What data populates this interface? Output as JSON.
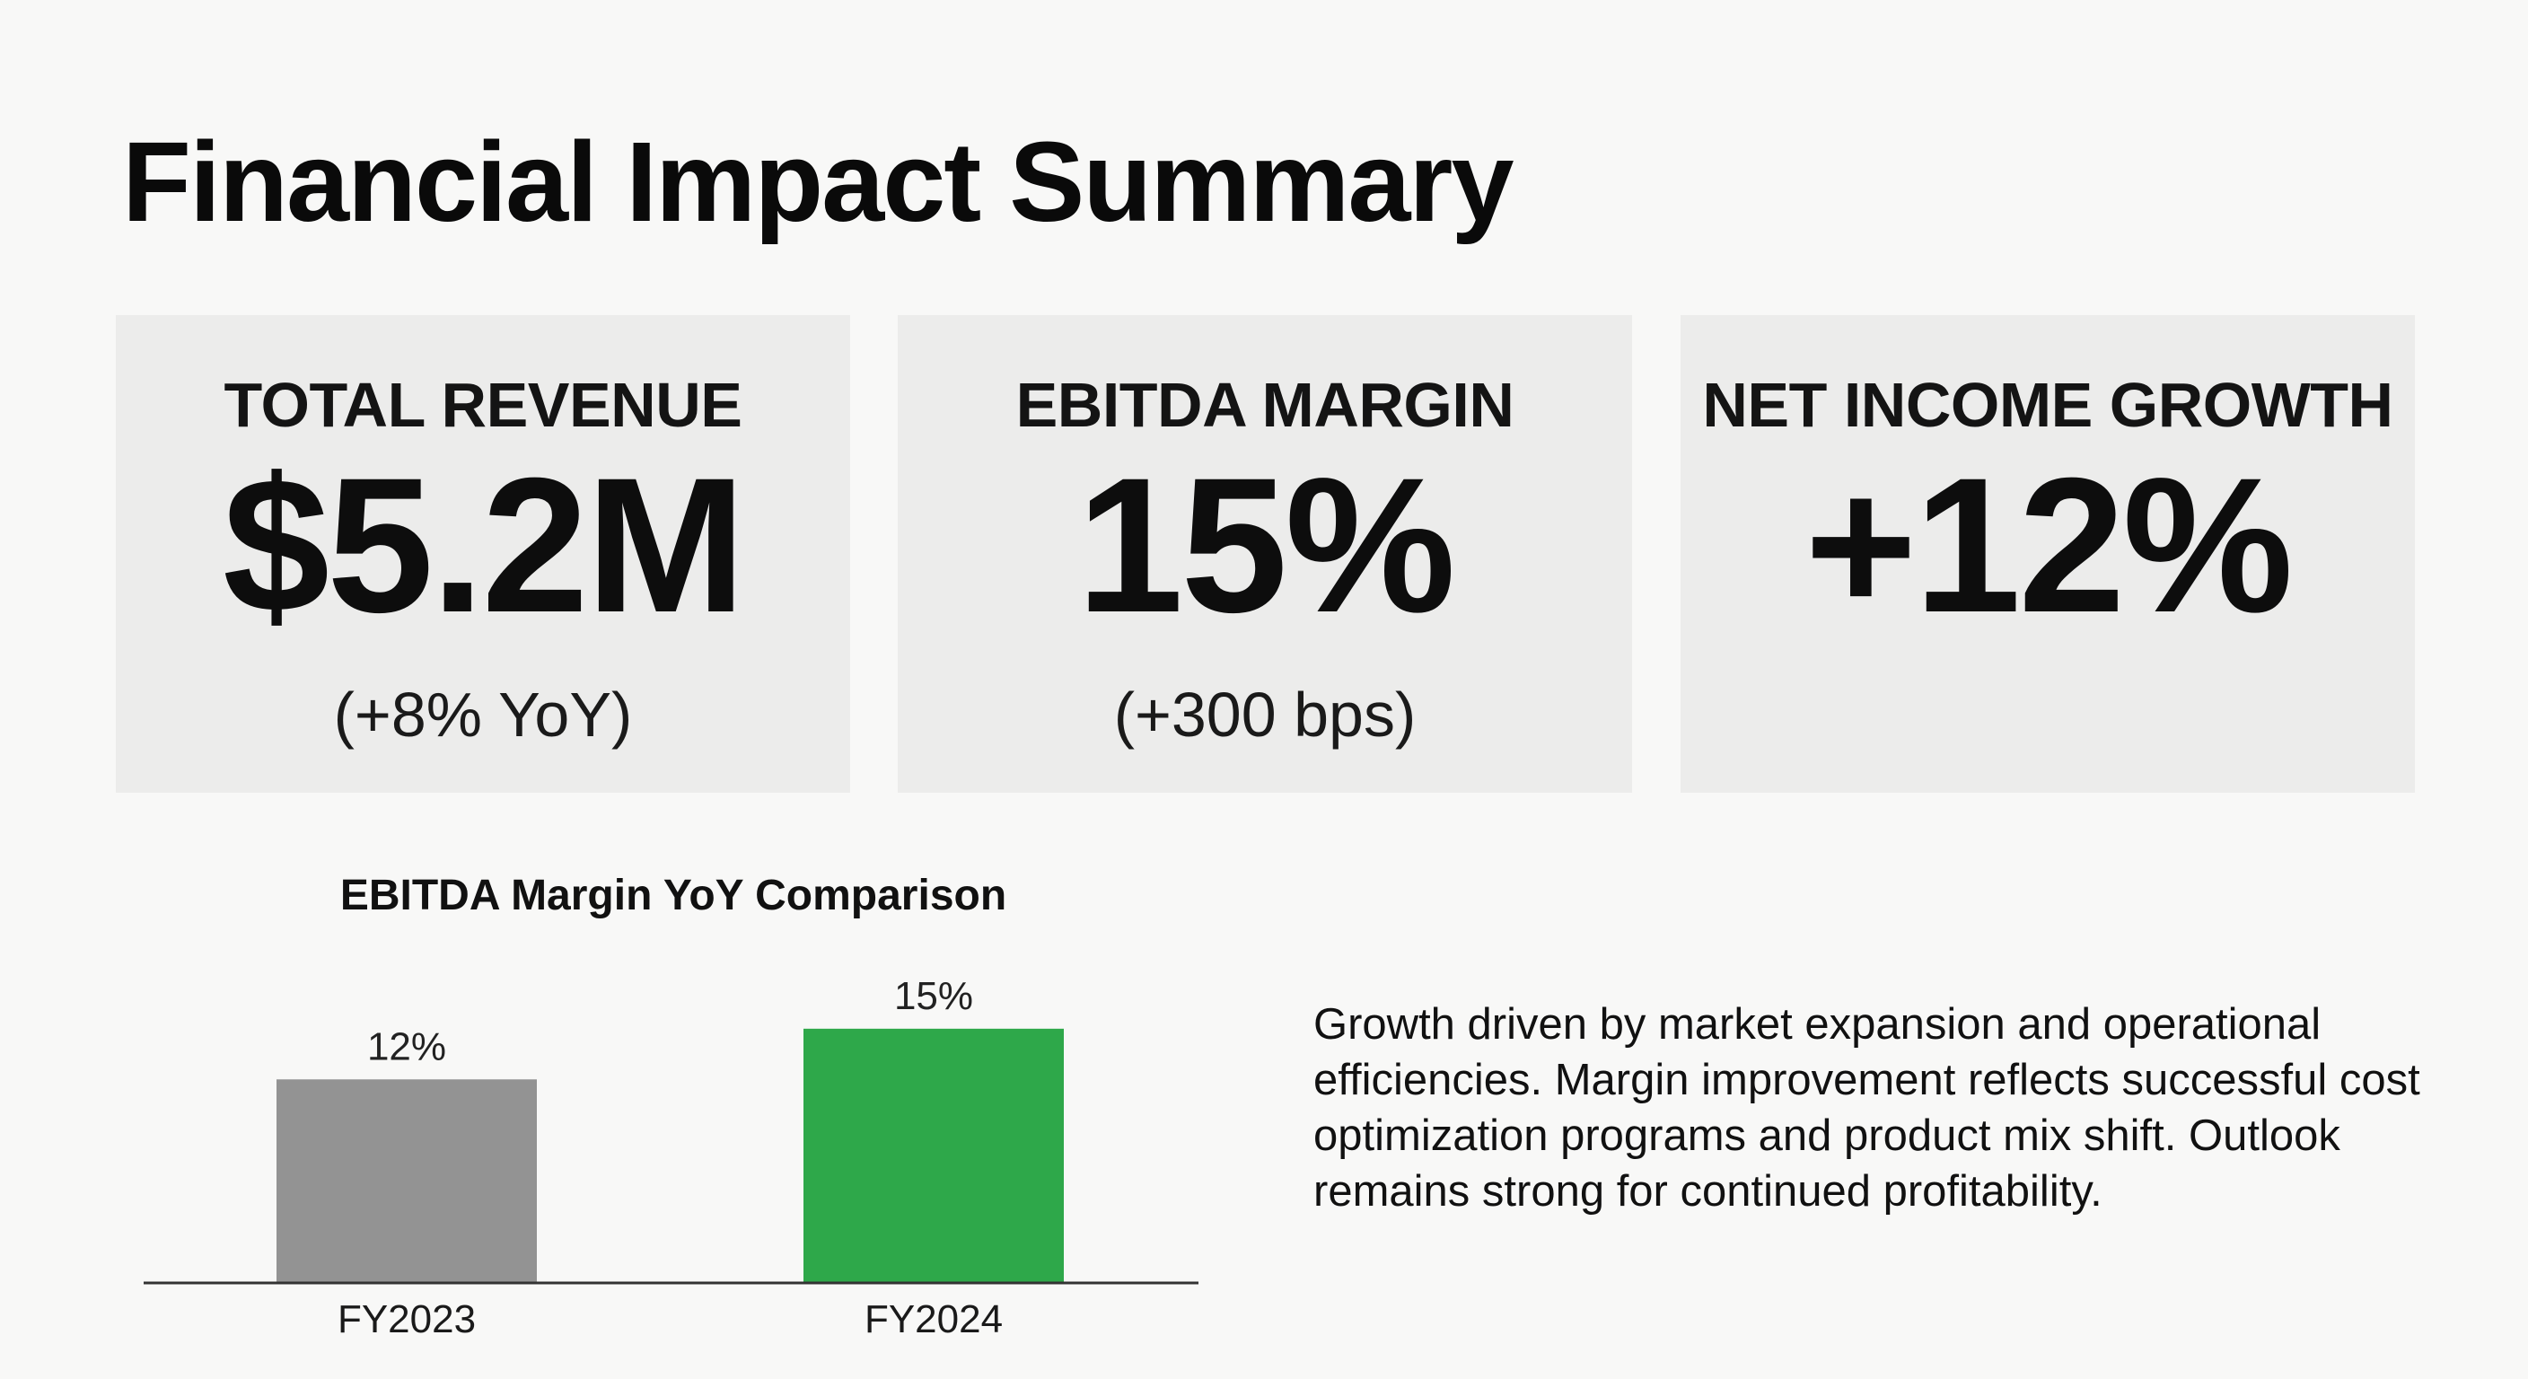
{
  "page": {
    "title": "Financial Impact Summary"
  },
  "kpis": [
    {
      "label": "TOTAL REVENUE",
      "value": "$5.2M",
      "sub": "(+8% YoY)"
    },
    {
      "label": "EBITDA MARGIN",
      "value": "15%",
      "sub": "(+300 bps)"
    },
    {
      "label": "NET INCOME GROWTH",
      "value": "+12%",
      "sub": ""
    }
  ],
  "commentary": "Growth driven by market expansion and operational efficiencies. Margin improvement reflects successful cost optimization programs and product mix shift. Outlook remains strong for continued profitability.",
  "chart_data": {
    "type": "bar",
    "title": "EBITDA Margin YoY Comparison",
    "categories": [
      "FY2023",
      "FY2024"
    ],
    "values": [
      12,
      15
    ],
    "data_labels": [
      "12%",
      "15%"
    ],
    "colors": [
      "#939393",
      "#2ea84a"
    ],
    "ylim": [
      0,
      18.5
    ],
    "grid": false,
    "legend": "none",
    "xlabel": "",
    "ylabel": ""
  }
}
